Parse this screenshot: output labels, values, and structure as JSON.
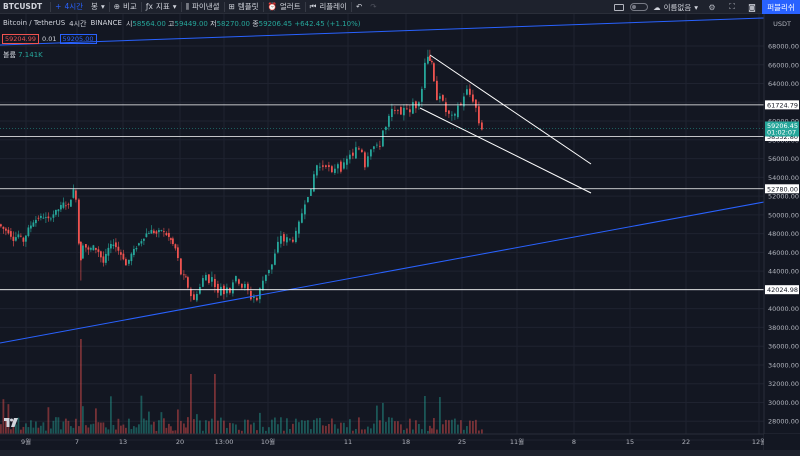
{
  "toolbar": {
    "symbol": "BTCUSDT",
    "interval": "4시간",
    "bar_style": "봉",
    "compare": "비교",
    "indicators": "지표",
    "financials": "파이낸셜",
    "templates": "템플릿",
    "alert": "얼러트",
    "replay": "리플레이",
    "layout_name": "이름없음",
    "publish": "퍼블리쉬"
  },
  "legend": {
    "title": "Bitcoin / TetherUS",
    "interval": "4시간",
    "exchange": "BINANCE",
    "open_label": "시",
    "open": "58564.00",
    "high_label": "고",
    "high": "59449.00",
    "low_label": "저",
    "low": "58270.00",
    "close_label": "종",
    "close": "59206.45",
    "change": "+642.45 (+1.10%)",
    "sell_price": "59204.99",
    "spread": "0.01",
    "buy_price": "59205.00",
    "volume_label": "볼륨",
    "volume_value": "7.141K"
  },
  "price_axis": {
    "currency": "USDT",
    "ticks": [
      "68000.00",
      "66000.00",
      "64000.00",
      "62000.00",
      "60000.00",
      "58000.00",
      "56000.00",
      "54000.00",
      "52000.00",
      "50000.00",
      "48000.00",
      "46000.00",
      "44000.00",
      "42000.00",
      "40000.00",
      "38000.00",
      "36000.00",
      "34000.00",
      "32000.00",
      "30000.00",
      "28000.00",
      "26000.00"
    ],
    "current_price": "59206.45",
    "countdown": "01:02:07",
    "level_labels": [
      "61724.79",
      "58352.80",
      "52780.00",
      "42024.98"
    ]
  },
  "time_axis": {
    "ticks": [
      "9월",
      "7",
      "13",
      "20",
      "13:00",
      "10월",
      "11",
      "18",
      "25",
      "11월",
      "8",
      "15",
      "22",
      "12월"
    ]
  },
  "chart_data": {
    "type": "candlestick",
    "symbol": "Bitcoin / TetherUS",
    "interval": "4시간",
    "ylim": [
      26000,
      69000
    ],
    "horizontal_levels": [
      61724.79,
      58352.8,
      52780.0,
      42024.98
    ],
    "last_price": 59206.45,
    "path_close": [
      [
        0,
        49000
      ],
      [
        5,
        48500
      ],
      [
        10,
        48200
      ],
      [
        15,
        47400
      ],
      [
        20,
        47900
      ],
      [
        25,
        47200
      ],
      [
        30,
        48500
      ],
      [
        35,
        49300
      ],
      [
        40,
        49700
      ],
      [
        45,
        49800
      ],
      [
        50,
        49500
      ],
      [
        55,
        50100
      ],
      [
        60,
        50600
      ],
      [
        65,
        51200
      ],
      [
        70,
        51000
      ],
      [
        75,
        52600
      ],
      [
        78,
        51800
      ],
      [
        80,
        47000
      ],
      [
        82,
        45300
      ],
      [
        85,
        46900
      ],
      [
        90,
        46200
      ],
      [
        95,
        46600
      ],
      [
        100,
        46100
      ],
      [
        105,
        44900
      ],
      [
        110,
        46400
      ],
      [
        115,
        47000
      ],
      [
        120,
        46200
      ],
      [
        125,
        45400
      ],
      [
        128,
        44600
      ],
      [
        133,
        45800
      ],
      [
        138,
        46600
      ],
      [
        143,
        47300
      ],
      [
        148,
        48000
      ],
      [
        153,
        48300
      ],
      [
        158,
        48000
      ],
      [
        163,
        48400
      ],
      [
        168,
        47900
      ],
      [
        172,
        47300
      ],
      [
        177,
        46400
      ],
      [
        180,
        45300
      ],
      [
        183,
        43700
      ],
      [
        187,
        43200
      ],
      [
        190,
        42300
      ],
      [
        193,
        41400
      ],
      [
        196,
        40900
      ],
      [
        199,
        41700
      ],
      [
        202,
        42300
      ],
      [
        205,
        43200
      ],
      [
        208,
        43600
      ],
      [
        211,
        42900
      ],
      [
        214,
        43300
      ],
      [
        217,
        42500
      ],
      [
        220,
        41600
      ],
      [
        223,
        42400
      ],
      [
        226,
        41600
      ],
      [
        229,
        42400
      ],
      [
        232,
        41800
      ],
      [
        235,
        42900
      ],
      [
        238,
        43300
      ],
      [
        241,
        42800
      ],
      [
        244,
        42300
      ],
      [
        247,
        42500
      ],
      [
        250,
        41900
      ],
      [
        253,
        41100
      ],
      [
        256,
        41300
      ],
      [
        259,
        40900
      ],
      [
        262,
        42100
      ],
      [
        265,
        43000
      ],
      [
        268,
        43700
      ],
      [
        271,
        44200
      ],
      [
        274,
        44700
      ],
      [
        277,
        45800
      ],
      [
        280,
        47000
      ],
      [
        283,
        47800
      ],
      [
        286,
        47200
      ],
      [
        289,
        47500
      ],
      [
        292,
        47400
      ],
      [
        295,
        47300
      ],
      [
        298,
        48100
      ],
      [
        301,
        49100
      ],
      [
        304,
        50200
      ],
      [
        307,
        51300
      ],
      [
        310,
        52100
      ],
      [
        313,
        52600
      ],
      [
        316,
        54300
      ],
      [
        319,
        55300
      ],
      [
        322,
        55100
      ],
      [
        325,
        55200
      ],
      [
        328,
        55300
      ],
      [
        331,
        55000
      ],
      [
        334,
        54400
      ],
      [
        337,
        55000
      ],
      [
        340,
        55500
      ],
      [
        343,
        54800
      ],
      [
        346,
        55400
      ],
      [
        349,
        55900
      ],
      [
        352,
        56500
      ],
      [
        355,
        56200
      ],
      [
        358,
        57100
      ],
      [
        361,
        57000
      ],
      [
        364,
        56800
      ],
      [
        367,
        55200
      ],
      [
        370,
        56400
      ],
      [
        373,
        57100
      ],
      [
        376,
        57300
      ],
      [
        379,
        57300
      ],
      [
        382,
        57400
      ],
      [
        385,
        59000
      ],
      [
        388,
        59300
      ],
      [
        391,
        60400
      ],
      [
        394,
        61200
      ],
      [
        397,
        61000
      ],
      [
        400,
        61300
      ],
      [
        403,
        60500
      ],
      [
        406,
        61500
      ],
      [
        409,
        61400
      ],
      [
        412,
        60800
      ],
      [
        415,
        62000
      ],
      [
        418,
        61500
      ],
      [
        421,
        62200
      ],
      [
        424,
        63500
      ],
      [
        427,
        66200
      ],
      [
        429,
        67000
      ],
      [
        431,
        66500
      ],
      [
        433,
        66100
      ],
      [
        436,
        64100
      ],
      [
        439,
        62400
      ],
      [
        442,
        62800
      ],
      [
        445,
        62000
      ],
      [
        448,
        61000
      ],
      [
        451,
        60700
      ],
      [
        454,
        60500
      ],
      [
        457,
        60600
      ],
      [
        460,
        61700
      ],
      [
        463,
        61700
      ],
      [
        466,
        62700
      ],
      [
        469,
        63300
      ],
      [
        472,
        62800
      ],
      [
        475,
        62200
      ],
      [
        478,
        61400
      ],
      [
        481,
        59800
      ],
      [
        484,
        59200
      ]
    ],
    "volume_note": "volume bars per candle"
  },
  "colors": {
    "background": "#131722",
    "up": "#26a69a",
    "down": "#ef5350",
    "trendline": "#2962ff",
    "level_line": "#ffffff",
    "publish": "#2962ff"
  }
}
